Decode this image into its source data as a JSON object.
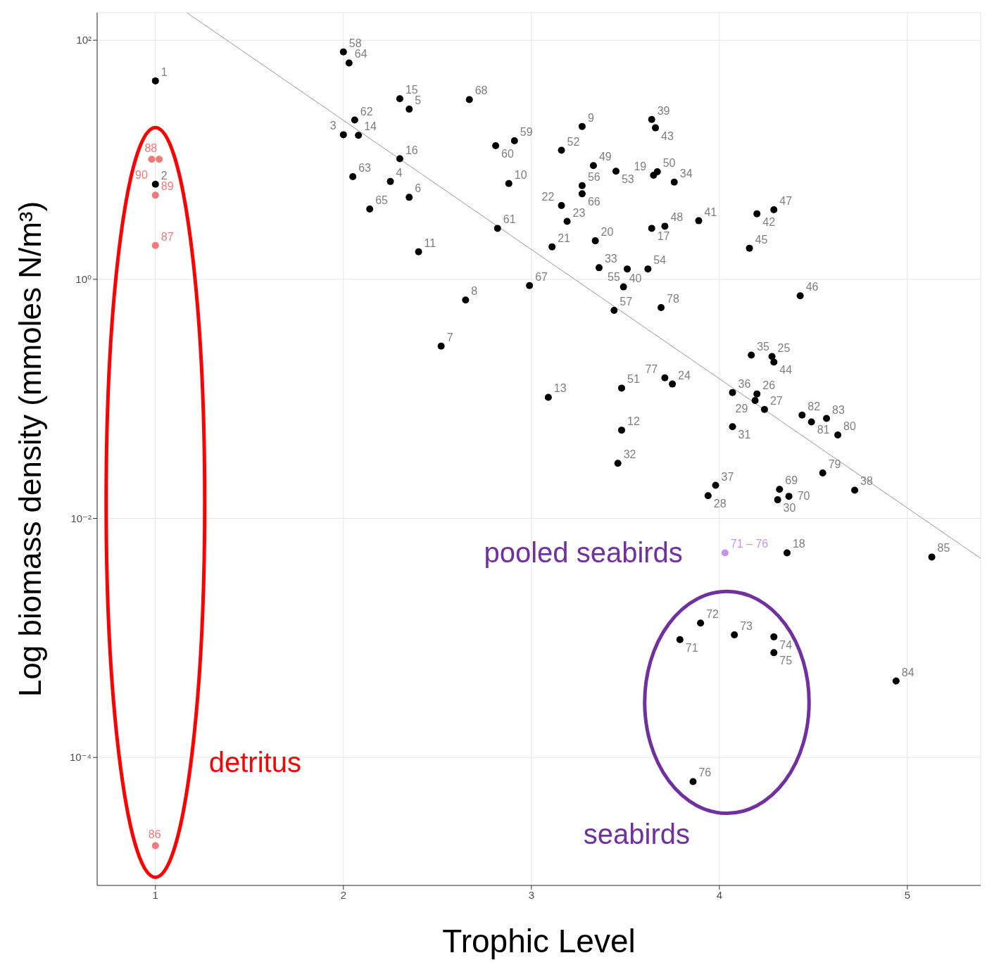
{
  "chart_data": {
    "type": "scatter",
    "xlabel": "Trophic Level",
    "ylabel": "Log biomass density (mmoles N/m³)",
    "log": "y",
    "grid": true,
    "legend": false,
    "marker": "circle",
    "xlim": [
      0.69,
      5.39
    ],
    "xticks": [
      1,
      2,
      3,
      4,
      5
    ],
    "ylim": [
      8.5e-06,
      170
    ],
    "yticks": [
      {
        "value": 100,
        "label": "10²"
      },
      {
        "value": 1,
        "label": "10⁰"
      },
      {
        "value": 0.01,
        "label": "10⁻²"
      },
      {
        "value": 0.0001,
        "label": "10⁻⁴"
      }
    ],
    "series": [
      {
        "color": "#000000",
        "x": [
          1.0,
          1.0,
          2.0,
          2.25,
          2.35,
          2.35,
          2.52,
          2.65,
          3.27,
          2.88,
          2.4,
          3.48,
          3.09,
          2.08,
          2.3,
          2.3,
          3.64,
          4.36,
          3.65,
          3.34,
          3.11,
          3.16,
          3.19,
          3.75,
          4.28,
          4.2,
          4.24,
          3.94,
          4.19,
          4.31,
          4.07,
          3.46,
          3.36,
          3.76,
          4.17,
          4.07,
          3.98,
          4.72,
          3.64,
          3.49,
          3.89,
          4.2,
          3.66,
          4.29,
          4.16,
          4.43,
          4.29,
          3.71,
          3.33,
          3.67,
          3.48,
          3.16,
          3.45,
          3.62,
          3.51,
          3.27,
          3.44,
          2.0,
          2.91,
          2.81,
          2.82,
          2.06,
          2.05,
          2.03,
          2.14,
          3.27,
          2.99,
          2.67,
          4.32,
          4.37,
          3.71,
          3.69,
          4.55,
          4.63,
          4.49,
          4.44,
          4.57,
          4.94,
          5.13
        ],
        "values": [
          45.7,
          6.24,
          16.2,
          6.58,
          26.5,
          4.85,
          0.276,
          0.671,
          19.0,
          6.32,
          1.7,
          0.0547,
          0.103,
          16.0,
          32.4,
          10.2,
          2.67,
          0.00515,
          7.41,
          2.1,
          1.87,
          4.14,
          3.05,
          0.133,
          0.226,
          0.11,
          0.0814,
          0.0155,
          0.0968,
          0.0143,
          0.0584,
          0.0289,
          1.25,
          6.5,
          0.232,
          0.113,
          0.0189,
          0.0172,
          21.7,
          0.864,
          3.09,
          3.53,
          18.5,
          0.203,
          1.82,
          0.727,
          3.82,
          2.78,
          8.93,
          7.93,
          0.123,
          12.0,
          8.03,
          1.22,
          1.22,
          6.08,
          0.55,
          79.8,
          14.4,
          13.1,
          2.67,
          21.5,
          7.22,
          64.5,
          3.87,
          5.19,
          0.887,
          31.9,
          0.0175,
          0.0153,
          0.15,
          0.58,
          0.024,
          0.0498,
          0.0641,
          0.0732,
          0.0685,
          0.000436,
          0.00475
        ]
      },
      {
        "name": "detritus",
        "color": "#f47a7a",
        "x": [
          1.0,
          1.0,
          0.98,
          1.0,
          1.02
        ],
        "values": [
          1.83e-05,
          1.92,
          10.1,
          5.05,
          10.1
        ]
      },
      {
        "name": "seabirds",
        "color": "#000000",
        "x": [
          3.79,
          3.9,
          4.08,
          4.29,
          4.29,
          3.86
        ],
        "values": [
          0.000968,
          0.00133,
          0.00106,
          0.00102,
          0.000752,
          6.28e-05
        ]
      },
      {
        "name": "pooled seabirds",
        "color": "#c792f5",
        "x": [
          4.03
        ],
        "values": [
          0.00515
        ]
      },
      {
        "type": "line",
        "marker": "none",
        "color": "#999999",
        "x": [
          1.167,
          5.39
        ],
        "values": [
          170,
          0.00463
        ]
      }
    ],
    "annotations": [
      {
        "text": "1",
        "x": 1.0,
        "y": 45.7
      },
      {
        "text": "2",
        "x": 1.0,
        "y": 6.24
      },
      {
        "text": "3",
        "x": 2.0,
        "y": 16.2
      },
      {
        "text": "4",
        "x": 2.25,
        "y": 6.58
      },
      {
        "text": "5",
        "x": 2.35,
        "y": 26.5
      },
      {
        "text": "6",
        "x": 2.35,
        "y": 4.85
      },
      {
        "text": "7",
        "x": 2.52,
        "y": 0.276
      },
      {
        "text": "8",
        "x": 2.65,
        "y": 0.671
      },
      {
        "text": "9",
        "x": 3.27,
        "y": 19.0
      },
      {
        "text": "10",
        "x": 2.88,
        "y": 6.32
      },
      {
        "text": "11",
        "x": 2.4,
        "y": 1.7
      },
      {
        "text": "12",
        "x": 3.48,
        "y": 0.0547
      },
      {
        "text": "13",
        "x": 3.09,
        "y": 0.103
      },
      {
        "text": "14",
        "x": 2.08,
        "y": 16.0
      },
      {
        "text": "15",
        "x": 2.3,
        "y": 32.4
      },
      {
        "text": "16",
        "x": 2.3,
        "y": 10.2
      },
      {
        "text": "17",
        "x": 3.64,
        "y": 2.67
      },
      {
        "text": "18",
        "x": 4.36,
        "y": 0.00515
      },
      {
        "text": "19",
        "x": 3.65,
        "y": 7.41
      },
      {
        "text": "20",
        "x": 3.34,
        "y": 2.1
      },
      {
        "text": "21",
        "x": 3.11,
        "y": 1.87
      },
      {
        "text": "22",
        "x": 3.16,
        "y": 4.14
      },
      {
        "text": "23",
        "x": 3.19,
        "y": 3.05
      },
      {
        "text": "24",
        "x": 3.75,
        "y": 0.133
      },
      {
        "text": "25",
        "x": 4.28,
        "y": 0.226
      },
      {
        "text": "26",
        "x": 4.2,
        "y": 0.11
      },
      {
        "text": "27",
        "x": 4.24,
        "y": 0.0814
      },
      {
        "text": "28",
        "x": 3.94,
        "y": 0.0155
      },
      {
        "text": "29",
        "x": 4.19,
        "y": 0.0968
      },
      {
        "text": "30",
        "x": 4.31,
        "y": 0.0143
      },
      {
        "text": "31",
        "x": 4.07,
        "y": 0.0584
      },
      {
        "text": "32",
        "x": 3.46,
        "y": 0.0289
      },
      {
        "text": "33",
        "x": 3.36,
        "y": 1.25
      },
      {
        "text": "34",
        "x": 3.76,
        "y": 6.5
      },
      {
        "text": "35",
        "x": 4.17,
        "y": 0.232
      },
      {
        "text": "36",
        "x": 4.07,
        "y": 0.113
      },
      {
        "text": "37",
        "x": 3.98,
        "y": 0.0189
      },
      {
        "text": "38",
        "x": 4.72,
        "y": 0.0172
      },
      {
        "text": "39",
        "x": 3.64,
        "y": 21.7
      },
      {
        "text": "40",
        "x": 3.49,
        "y": 0.864
      },
      {
        "text": "41",
        "x": 3.89,
        "y": 3.09
      },
      {
        "text": "42",
        "x": 4.2,
        "y": 3.53
      },
      {
        "text": "43",
        "x": 3.66,
        "y": 18.5
      },
      {
        "text": "44",
        "x": 4.29,
        "y": 0.203
      },
      {
        "text": "45",
        "x": 4.16,
        "y": 1.82
      },
      {
        "text": "46",
        "x": 4.43,
        "y": 0.727
      },
      {
        "text": "47",
        "x": 4.29,
        "y": 3.82
      },
      {
        "text": "48",
        "x": 3.71,
        "y": 2.78
      },
      {
        "text": "49",
        "x": 3.33,
        "y": 8.93
      },
      {
        "text": "50",
        "x": 3.67,
        "y": 7.93
      },
      {
        "text": "51",
        "x": 3.48,
        "y": 0.123
      },
      {
        "text": "52",
        "x": 3.16,
        "y": 12.0
      },
      {
        "text": "53",
        "x": 3.45,
        "y": 8.03
      },
      {
        "text": "54",
        "x": 3.62,
        "y": 1.22
      },
      {
        "text": "55",
        "x": 3.51,
        "y": 1.22
      },
      {
        "text": "56",
        "x": 3.27,
        "y": 6.08
      },
      {
        "text": "57",
        "x": 3.44,
        "y": 0.55
      },
      {
        "text": "58",
        "x": 2.0,
        "y": 79.8
      },
      {
        "text": "59",
        "x": 2.91,
        "y": 14.4
      },
      {
        "text": "60",
        "x": 2.81,
        "y": 13.1
      },
      {
        "text": "61",
        "x": 2.82,
        "y": 2.67
      },
      {
        "text": "62",
        "x": 2.06,
        "y": 21.5
      },
      {
        "text": "63",
        "x": 2.05,
        "y": 7.22
      },
      {
        "text": "64",
        "x": 2.03,
        "y": 64.5
      },
      {
        "text": "65",
        "x": 2.14,
        "y": 3.87
      },
      {
        "text": "66",
        "x": 3.27,
        "y": 5.19
      },
      {
        "text": "67",
        "x": 2.99,
        "y": 0.887
      },
      {
        "text": "68",
        "x": 2.67,
        "y": 31.9
      },
      {
        "text": "69",
        "x": 4.32,
        "y": 0.0175
      },
      {
        "text": "70",
        "x": 4.37,
        "y": 0.0153
      },
      {
        "text": "77",
        "x": 3.71,
        "y": 0.15
      },
      {
        "text": "78",
        "x": 3.69,
        "y": 0.58
      },
      {
        "text": "79",
        "x": 4.55,
        "y": 0.024
      },
      {
        "text": "80",
        "x": 4.63,
        "y": 0.0498
      },
      {
        "text": "81",
        "x": 4.49,
        "y": 0.0641
      },
      {
        "text": "82",
        "x": 4.44,
        "y": 0.0732
      },
      {
        "text": "83",
        "x": 4.57,
        "y": 0.0685
      },
      {
        "text": "84",
        "x": 4.94,
        "y": 0.000436
      },
      {
        "text": "85",
        "x": 5.13,
        "y": 0.00475
      },
      {
        "text": "86",
        "x": 1.0,
        "y": 1.83e-05
      },
      {
        "text": "87",
        "x": 1.0,
        "y": 1.92
      },
      {
        "text": "88",
        "x": 0.98,
        "y": 10.1
      },
      {
        "text": "89",
        "x": 1.0,
        "y": 5.05
      },
      {
        "text": "90",
        "x": 1.02,
        "y": 10.1
      },
      {
        "text": "71",
        "x": 3.79,
        "y": 0.000968
      },
      {
        "text": "72",
        "x": 3.9,
        "y": 0.00133
      },
      {
        "text": "73",
        "x": 4.08,
        "y": 0.00106
      },
      {
        "text": "74",
        "x": 4.29,
        "y": 0.00102
      },
      {
        "text": "75",
        "x": 4.29,
        "y": 0.000752
      },
      {
        "text": "76",
        "x": 3.86,
        "y": 6.28e-05
      },
      {
        "text": "71 – 76",
        "x": 4.03,
        "y": 0.00515
      }
    ]
  }
}
